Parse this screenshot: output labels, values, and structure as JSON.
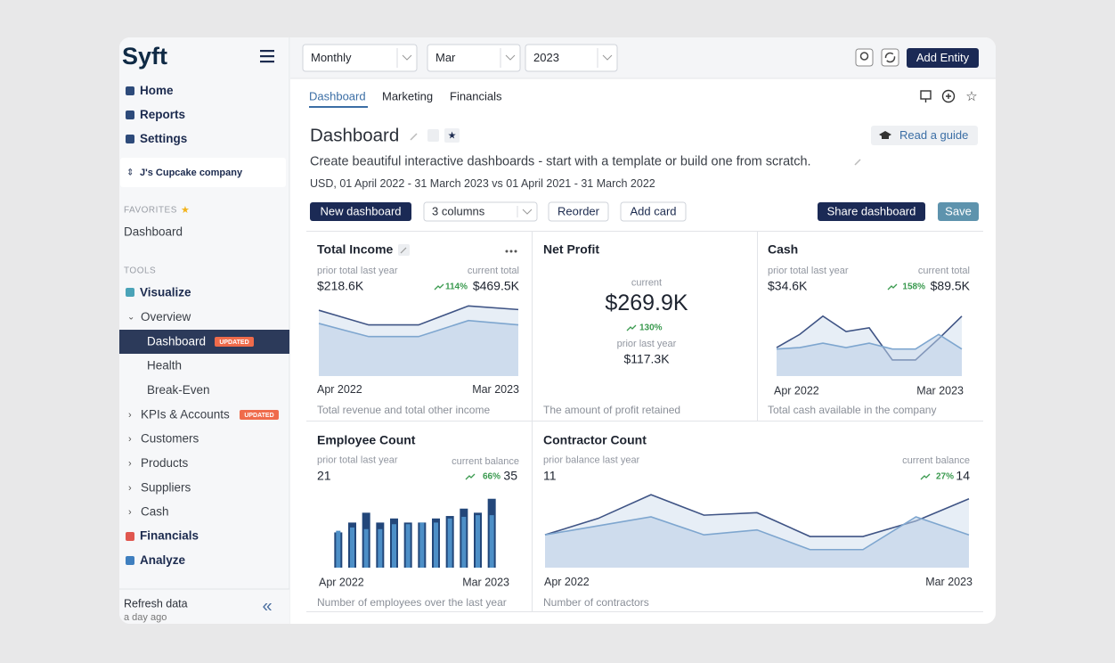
{
  "sidebar": {
    "logo": "Syft",
    "nav": [
      "Home",
      "Reports",
      "Settings"
    ],
    "company": "J's Cupcake company",
    "favorites_heading": "FAVORITES",
    "favorites": [
      "Dashboard"
    ],
    "tools_heading": "TOOLS",
    "tools": [
      {
        "label": "Visualize"
      },
      {
        "label": "Overview"
      },
      {
        "label": "Dashboard",
        "badge": "UPDATED"
      },
      {
        "label": "Health"
      },
      {
        "label": "Break-Even"
      },
      {
        "label": "KPIs & Accounts",
        "badge": "UPDATED"
      },
      {
        "label": "Customers"
      },
      {
        "label": "Products"
      },
      {
        "label": "Suppliers"
      },
      {
        "label": "Cash"
      },
      {
        "label": "Financials"
      },
      {
        "label": "Analyze"
      }
    ],
    "refresh": "Refresh data",
    "refresh_time": "a day ago"
  },
  "toolbar": {
    "selects": [
      "Monthly",
      "Mar",
      "2023"
    ],
    "add_entity": "Add Entity"
  },
  "tabs": [
    "Dashboard",
    "Marketing",
    "Financials"
  ],
  "header": {
    "title": "Dashboard",
    "read_guide": "Read a guide",
    "description": "Create beautiful interactive dashboards - start with a template or build one from scratch.",
    "period": "USD, 01 April 2022 - 31 March 2023 vs 01 April 2021 - 31 March 2022"
  },
  "actions": {
    "new_dashboard": "New dashboard",
    "columns": "3 columns",
    "reorder": "Reorder",
    "add_card": "Add card",
    "share": "Share dashboard",
    "save": "Save"
  },
  "cards": [
    {
      "title": "Total Income",
      "left_label": "prior total last year",
      "left_value": "$218.6K",
      "right_label": "current total",
      "change": "114%",
      "right_value": "$469.5K",
      "axis": [
        "Apr 2022",
        "Mar 2023"
      ],
      "footer": "Total revenue and total other income",
      "chart": {
        "type": "area",
        "series": [
          {
            "color": "#3f5485",
            "values": [
              90,
              70,
              70,
              96,
              91
            ]
          },
          {
            "color": "#7ea6cf",
            "values": [
              72,
              54,
              54,
              76,
              70
            ]
          }
        ]
      }
    },
    {
      "title": "Net Profit",
      "center_label": "current",
      "value": "$269.9K",
      "change": "130%",
      "prior_label": "prior last year",
      "prior_value": "$117.3K",
      "footer": "The amount of profit retained"
    },
    {
      "title": "Cash",
      "left_label": "prior total last year",
      "left_value": "$34.6K",
      "right_label": "current total",
      "change": "158%",
      "right_value": "$89.5K",
      "axis": [
        "Apr 2022",
        "Mar 2023"
      ],
      "footer": "Total cash available in the company",
      "chart": {
        "type": "area",
        "series": [
          {
            "color": "#3f5485",
            "values": [
              39,
              57,
              82,
              61,
              66,
              22,
              22,
              51,
              82
            ]
          },
          {
            "color": "#7ea6cf",
            "values": [
              37,
              39,
              45,
              39,
              45,
              37,
              37,
              57,
              37
            ]
          }
        ]
      }
    },
    {
      "title": "Employee Count",
      "left_label": "prior total last year",
      "left_value": "21",
      "right_label": "current balance",
      "change": "66%",
      "right_value": "35",
      "axis": [
        "Apr 2022",
        "Mar 2023"
      ],
      "footer": "Number of employees over the last year",
      "chart": {
        "type": "bar",
        "series": [
          {
            "color": "#23477a",
            "values": [
              43,
              55,
              67,
              55,
              60,
              55,
              55,
              60,
              63,
              72,
              67,
              84
            ]
          },
          {
            "color": "#4d8fc7",
            "values": [
              45,
              49,
              47,
              47,
              53,
              53,
              55,
              55,
              60,
              62,
              64,
              64
            ]
          }
        ]
      }
    },
    {
      "title": "Contractor Count",
      "left_label": "prior balance last year",
      "left_value": "11",
      "right_label": "current balance",
      "change": "27%",
      "right_value": "14",
      "axis": [
        "Apr 2022",
        "Mar 2023"
      ],
      "footer": "Number of contractors",
      "chart": {
        "type": "area",
        "series": [
          {
            "color": "#3f5485",
            "values": [
              40,
              60,
              89,
              64,
              67,
              38,
              38,
              57,
              84
            ]
          },
          {
            "color": "#7ea6cf",
            "values": [
              40,
              51,
              62,
              40,
              46,
              22,
              22,
              62,
              40
            ]
          }
        ]
      }
    }
  ]
}
